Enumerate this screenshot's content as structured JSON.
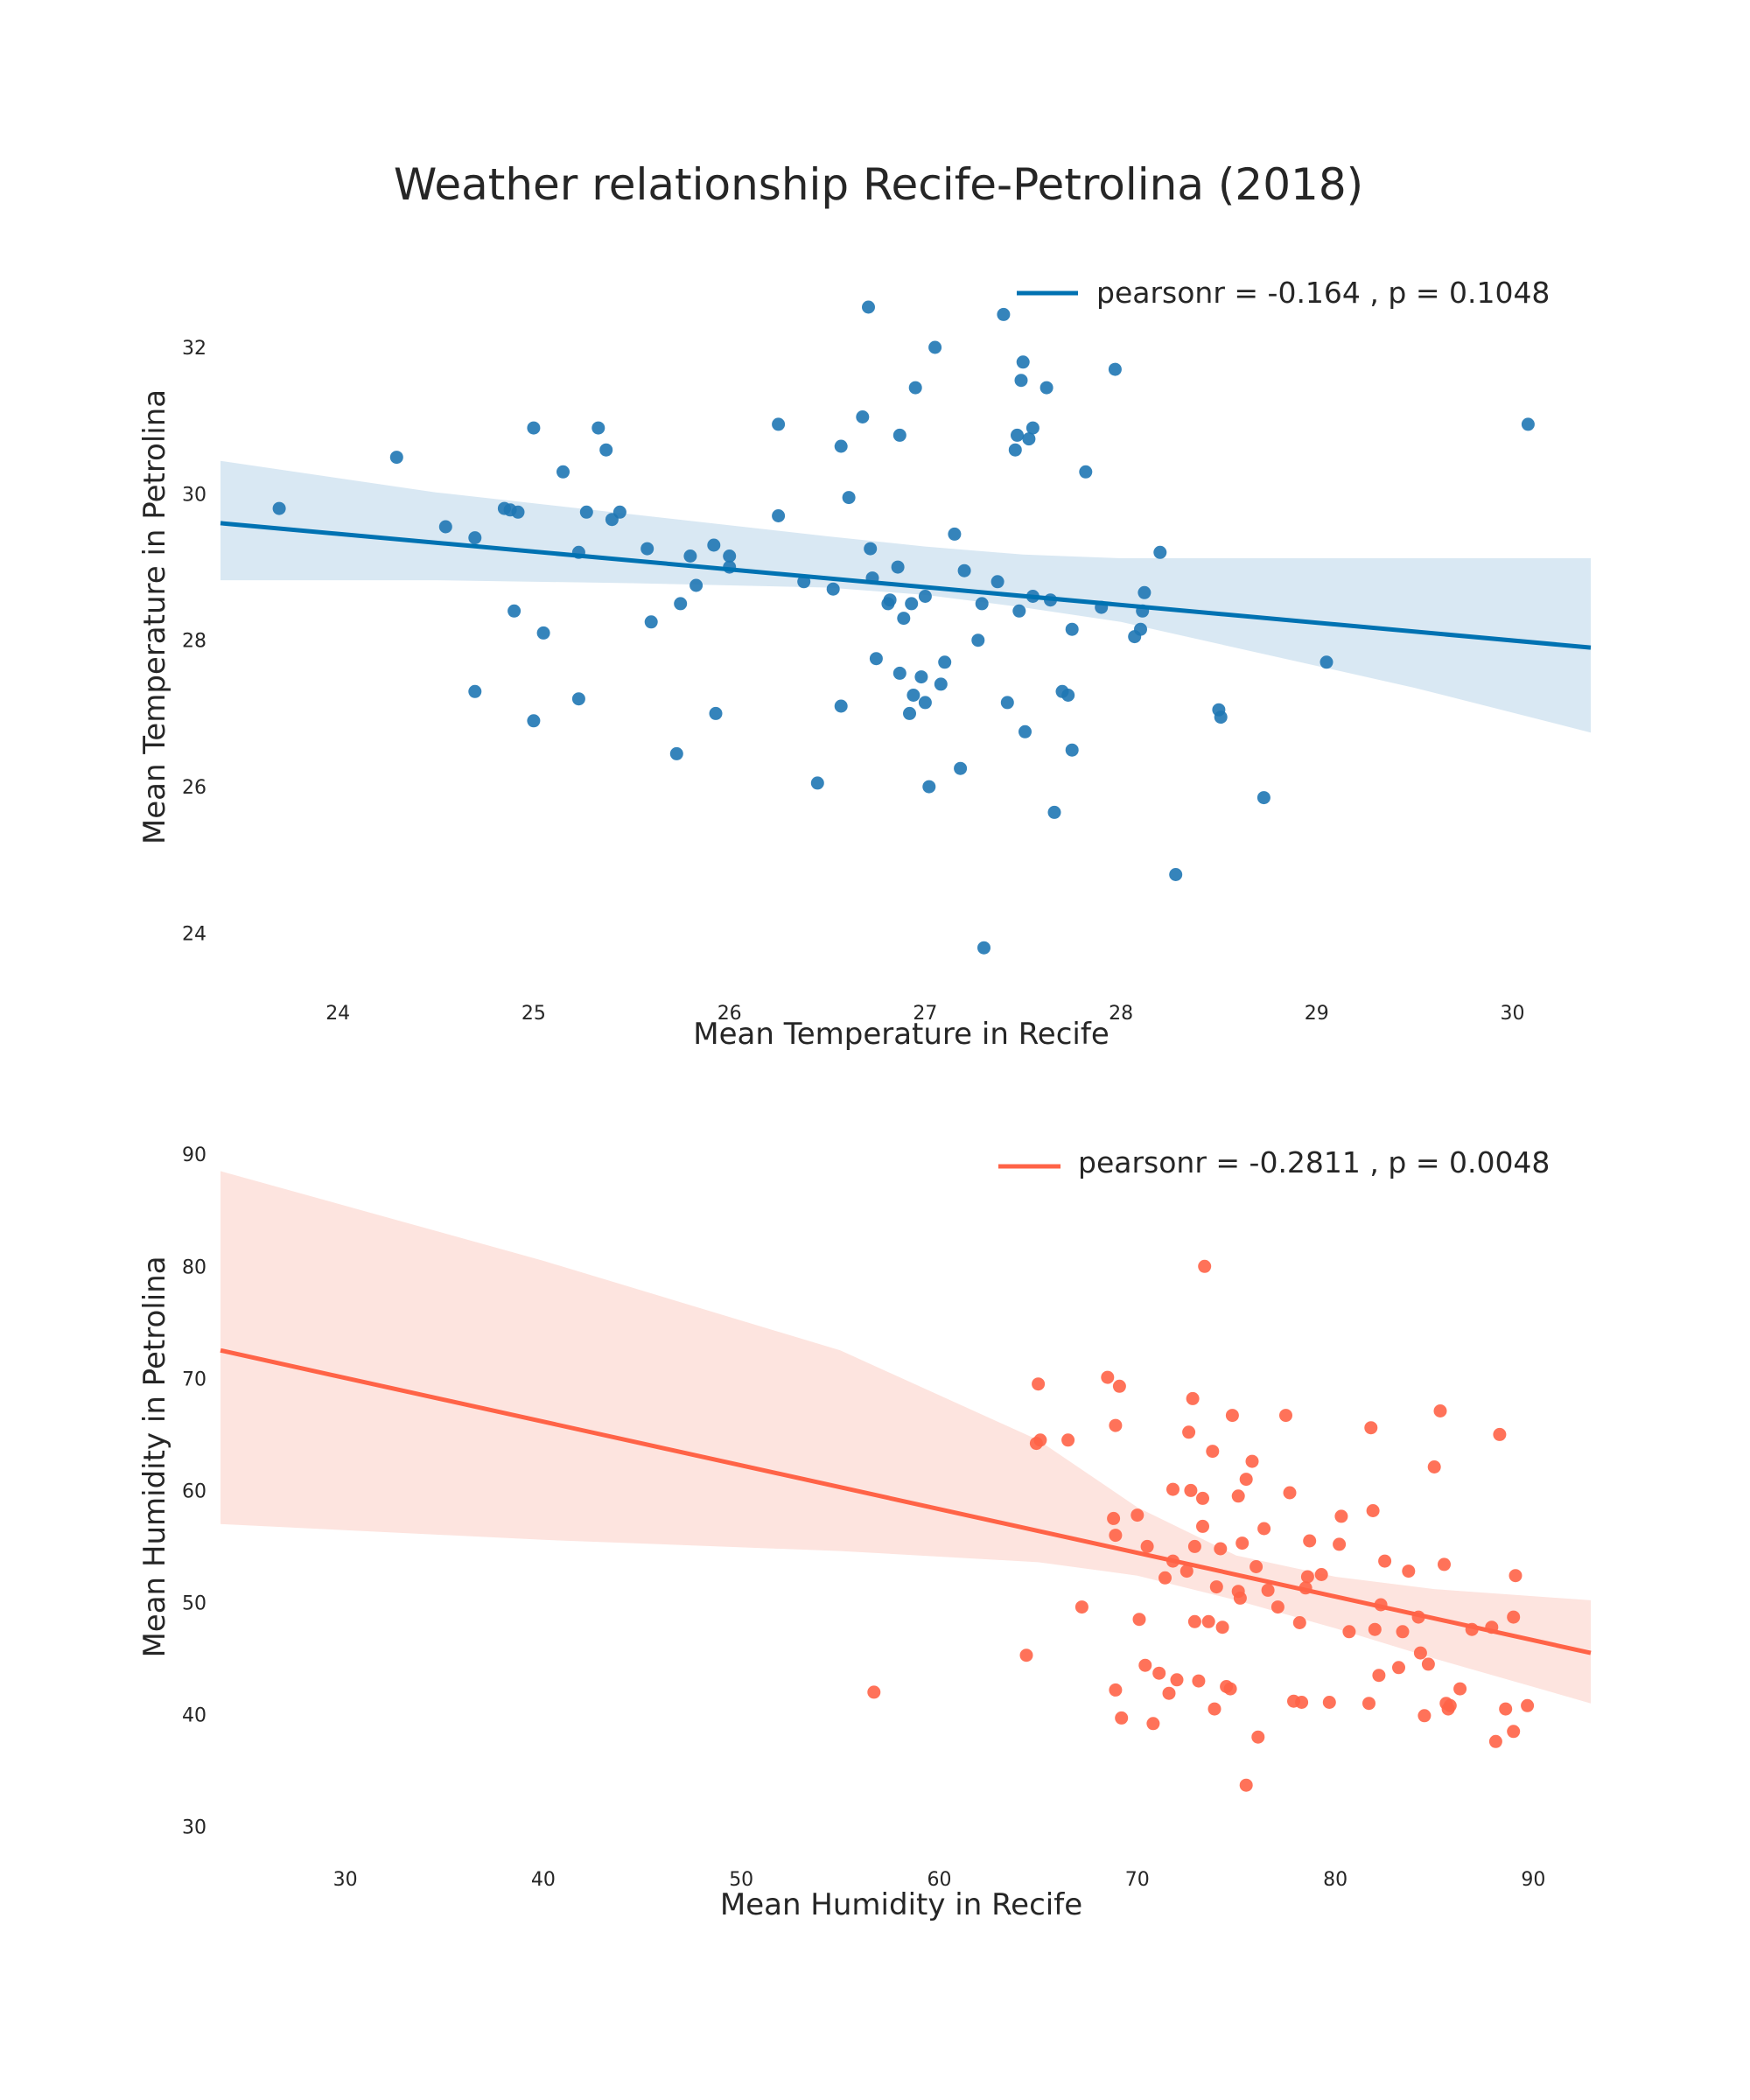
{
  "figure": {
    "title": "Weather relationship Recife-Petrolina (2018)"
  },
  "chart_data": [
    {
      "type": "scatter",
      "xlabel": "Mean Temperature in Recife",
      "ylabel": "Mean Temperature in Petrolina",
      "xlim": [
        23.4,
        30.4
      ],
      "ylim": [
        23.3,
        33.1
      ],
      "xticks": [
        24,
        25,
        26,
        27,
        28,
        29,
        30
      ],
      "yticks": [
        24,
        26,
        28,
        30,
        32
      ],
      "grid": false,
      "legend_position": "top-right",
      "color": "#1f77b4",
      "line_color": "#0072b2",
      "band_color": "#d9e8f3",
      "legend": "pearsonr = -0.164 , p = 0.1048",
      "regression": {
        "x": [
          23.4,
          30.4
        ],
        "y": [
          29.6,
          27.9
        ]
      },
      "band": {
        "x": [
          23.4,
          24.5,
          25.5,
          26.5,
          27.0,
          27.5,
          28.0,
          28.5,
          29.5,
          30.4
        ],
        "upper": [
          30.45,
          30.02,
          29.72,
          29.42,
          29.28,
          29.17,
          29.12,
          29.12,
          29.12,
          29.12
        ],
        "lower": [
          28.82,
          28.82,
          28.78,
          28.72,
          28.62,
          28.45,
          28.25,
          27.95,
          27.35,
          26.74
        ]
      },
      "points": [
        [
          23.7,
          29.8
        ],
        [
          24.3,
          30.5
        ],
        [
          24.55,
          29.55
        ],
        [
          24.7,
          29.4
        ],
        [
          24.7,
          27.3
        ],
        [
          24.85,
          29.8
        ],
        [
          24.88,
          29.78
        ],
        [
          24.92,
          29.75
        ],
        [
          24.9,
          28.4
        ],
        [
          25.0,
          30.9
        ],
        [
          25.0,
          26.9
        ],
        [
          25.05,
          28.1
        ],
        [
          25.15,
          30.3
        ],
        [
          25.23,
          29.2
        ],
        [
          25.23,
          27.2
        ],
        [
          25.27,
          29.75
        ],
        [
          25.33,
          30.9
        ],
        [
          25.37,
          30.6
        ],
        [
          25.4,
          29.65
        ],
        [
          25.44,
          29.75
        ],
        [
          25.58,
          29.25
        ],
        [
          25.6,
          28.25
        ],
        [
          25.73,
          26.45
        ],
        [
          25.75,
          28.5
        ],
        [
          25.8,
          29.15
        ],
        [
          25.83,
          28.75
        ],
        [
          25.92,
          29.3
        ],
        [
          25.93,
          27.0
        ],
        [
          26.0,
          29.15
        ],
        [
          26.0,
          29.0
        ],
        [
          26.25,
          30.95
        ],
        [
          26.25,
          29.7
        ],
        [
          26.38,
          28.8
        ],
        [
          26.45,
          26.05
        ],
        [
          26.53,
          28.7
        ],
        [
          26.57,
          30.65
        ],
        [
          26.57,
          27.1
        ],
        [
          26.61,
          29.95
        ],
        [
          26.68,
          31.05
        ],
        [
          26.71,
          32.55
        ],
        [
          26.72,
          29.25
        ],
        [
          26.73,
          28.85
        ],
        [
          26.75,
          27.75
        ],
        [
          26.81,
          28.5
        ],
        [
          26.82,
          28.55
        ],
        [
          26.86,
          29.0
        ],
        [
          26.87,
          30.8
        ],
        [
          26.87,
          27.55
        ],
        [
          26.89,
          28.3
        ],
        [
          26.92,
          27.0
        ],
        [
          26.93,
          28.5
        ],
        [
          26.94,
          27.25
        ],
        [
          26.95,
          31.45
        ],
        [
          26.98,
          27.5
        ],
        [
          27.0,
          28.6
        ],
        [
          27.0,
          27.15
        ],
        [
          27.02,
          26.0
        ],
        [
          27.05,
          32.0
        ],
        [
          27.08,
          27.4
        ],
        [
          27.1,
          27.7
        ],
        [
          27.15,
          29.45
        ],
        [
          27.18,
          26.25
        ],
        [
          27.2,
          28.95
        ],
        [
          27.27,
          28.0
        ],
        [
          27.29,
          28.5
        ],
        [
          27.3,
          23.8
        ],
        [
          27.37,
          28.8
        ],
        [
          27.4,
          32.45
        ],
        [
          27.42,
          27.15
        ],
        [
          27.46,
          30.6
        ],
        [
          27.47,
          30.8
        ],
        [
          27.48,
          28.4
        ],
        [
          27.49,
          31.55
        ],
        [
          27.5,
          31.8
        ],
        [
          27.51,
          26.75
        ],
        [
          27.53,
          30.75
        ],
        [
          27.55,
          30.9
        ],
        [
          27.55,
          28.6
        ],
        [
          27.62,
          31.45
        ],
        [
          27.64,
          28.55
        ],
        [
          27.66,
          25.65
        ],
        [
          27.7,
          27.3
        ],
        [
          27.73,
          27.25
        ],
        [
          27.75,
          26.5
        ],
        [
          27.75,
          28.15
        ],
        [
          27.82,
          30.3
        ],
        [
          27.9,
          28.45
        ],
        [
          27.97,
          31.7
        ],
        [
          28.07,
          28.05
        ],
        [
          28.1,
          28.15
        ],
        [
          28.11,
          28.4
        ],
        [
          28.12,
          28.65
        ],
        [
          28.2,
          29.2
        ],
        [
          28.28,
          24.8
        ],
        [
          28.5,
          27.05
        ],
        [
          28.51,
          26.95
        ],
        [
          28.73,
          25.85
        ],
        [
          29.05,
          27.7
        ],
        [
          30.08,
          30.95
        ]
      ]
    },
    {
      "type": "scatter",
      "xlabel": "Mean Humidity in Recife",
      "ylabel": "Mean Humidity in Petrolina",
      "xlim": [
        23.7,
        92.9
      ],
      "ylim": [
        26.3,
        91.5
      ],
      "xticks": [
        30,
        40,
        50,
        60,
        70,
        80,
        90
      ],
      "yticks": [
        30,
        40,
        50,
        60,
        70,
        80,
        90
      ],
      "grid": false,
      "legend_position": "top-right",
      "color": "#ff6347",
      "line_color": "#ff6347",
      "band_color": "#fde4df",
      "legend": "pearsonr = -0.2811 , p = 0.0048",
      "regression": {
        "x": [
          23.7,
          92.9
        ],
        "y": [
          72.5,
          45.5
        ]
      },
      "band": {
        "x": [
          23.7,
          40,
          55,
          65,
          70,
          75,
          80,
          85,
          92.9
        ],
        "upper": [
          88.5,
          80.5,
          72.5,
          64.5,
          58.5,
          54.2,
          52.3,
          51.2,
          50.2
        ],
        "lower": [
          57.0,
          55.6,
          54.6,
          53.6,
          52.4,
          50.2,
          47.7,
          45.0,
          41.0
        ]
      },
      "points": [
        [
          56.7,
          42.0
        ],
        [
          64.4,
          45.3
        ],
        [
          64.9,
          64.2
        ],
        [
          65.0,
          69.5
        ],
        [
          65.1,
          64.5
        ],
        [
          66.5,
          64.5
        ],
        [
          67.2,
          49.6
        ],
        [
          68.5,
          70.1
        ],
        [
          68.8,
          57.5
        ],
        [
          68.9,
          65.8
        ],
        [
          68.9,
          56.0
        ],
        [
          68.9,
          42.2
        ],
        [
          69.1,
          69.3
        ],
        [
          69.2,
          39.7
        ],
        [
          70.0,
          57.8
        ],
        [
          70.1,
          48.5
        ],
        [
          70.4,
          44.4
        ],
        [
          70.5,
          55.0
        ],
        [
          70.8,
          39.2
        ],
        [
          71.1,
          43.7
        ],
        [
          71.4,
          52.2
        ],
        [
          71.6,
          41.9
        ],
        [
          71.8,
          53.7
        ],
        [
          71.8,
          60.1
        ],
        [
          72.0,
          43.1
        ],
        [
          72.5,
          52.8
        ],
        [
          72.6,
          65.2
        ],
        [
          72.7,
          60.0
        ],
        [
          72.8,
          68.2
        ],
        [
          72.9,
          48.3
        ],
        [
          72.9,
          55.0
        ],
        [
          73.1,
          43.0
        ],
        [
          73.3,
          56.8
        ],
        [
          73.3,
          59.3
        ],
        [
          73.4,
          80.0
        ],
        [
          73.6,
          48.3
        ],
        [
          73.8,
          63.5
        ],
        [
          73.9,
          40.5
        ],
        [
          74.0,
          51.4
        ],
        [
          74.2,
          54.8
        ],
        [
          74.3,
          47.8
        ],
        [
          74.5,
          42.5
        ],
        [
          74.7,
          42.3
        ],
        [
          74.8,
          66.7
        ],
        [
          75.1,
          59.5
        ],
        [
          75.1,
          51.0
        ],
        [
          75.2,
          50.4
        ],
        [
          75.3,
          55.3
        ],
        [
          75.5,
          61.0
        ],
        [
          75.5,
          33.7
        ],
        [
          75.8,
          62.6
        ],
        [
          76.0,
          53.2
        ],
        [
          76.1,
          38.0
        ],
        [
          76.4,
          56.6
        ],
        [
          76.6,
          51.1
        ],
        [
          77.1,
          49.6
        ],
        [
          77.5,
          66.7
        ],
        [
          77.7,
          59.8
        ],
        [
          77.9,
          41.2
        ],
        [
          78.2,
          48.2
        ],
        [
          78.3,
          41.1
        ],
        [
          78.5,
          51.3
        ],
        [
          78.6,
          52.3
        ],
        [
          78.7,
          55.5
        ],
        [
          79.3,
          52.5
        ],
        [
          79.7,
          41.1
        ],
        [
          80.2,
          55.2
        ],
        [
          80.3,
          57.7
        ],
        [
          80.7,
          47.4
        ],
        [
          81.7,
          41.0
        ],
        [
          81.8,
          65.6
        ],
        [
          81.9,
          58.2
        ],
        [
          82.0,
          47.6
        ],
        [
          82.2,
          43.5
        ],
        [
          82.3,
          49.8
        ],
        [
          82.5,
          53.7
        ],
        [
          83.2,
          44.2
        ],
        [
          83.4,
          47.4
        ],
        [
          83.7,
          52.8
        ],
        [
          84.2,
          48.7
        ],
        [
          84.3,
          45.5
        ],
        [
          84.5,
          39.9
        ],
        [
          84.7,
          44.5
        ],
        [
          85.0,
          62.1
        ],
        [
          85.3,
          67.1
        ],
        [
          85.5,
          53.4
        ],
        [
          85.6,
          41.0
        ],
        [
          85.7,
          40.5
        ],
        [
          85.8,
          40.8
        ],
        [
          86.3,
          42.3
        ],
        [
          86.9,
          47.6
        ],
        [
          87.9,
          47.8
        ],
        [
          88.1,
          37.6
        ],
        [
          88.3,
          65.0
        ],
        [
          88.6,
          40.5
        ],
        [
          89.0,
          48.7
        ],
        [
          89.0,
          38.5
        ],
        [
          89.1,
          52.4
        ],
        [
          89.7,
          40.8
        ]
      ]
    }
  ]
}
